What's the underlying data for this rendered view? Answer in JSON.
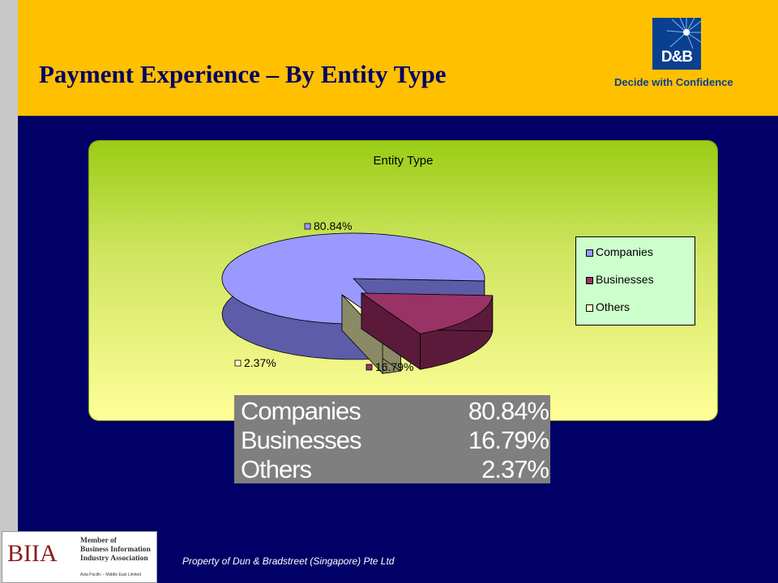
{
  "slide": {
    "title": "Payment Experience – By Entity Type",
    "logo_text": "D&B",
    "tagline": "Decide with Confidence",
    "footer": "Property of Dun & Bradstreet (Singapore) Pte Ltd",
    "biia": {
      "mark": "BIIA",
      "lines": [
        "Member of",
        "Business Information",
        "Industry Association"
      ],
      "sub": "Asia Pacific – Middle East Limited"
    }
  },
  "chart_data": {
    "type": "pie",
    "title": "Entity Type",
    "categories": [
      "Companies",
      "Businesses",
      "Others"
    ],
    "values": [
      80.84,
      16.79,
      2.37
    ],
    "data_labels": [
      "80.84%",
      "16.79%",
      "2.37%"
    ],
    "colors": [
      "#9999ff",
      "#993366",
      "#ffffcc"
    ],
    "legend": "right"
  },
  "table": {
    "rows": [
      {
        "name": "Companies",
        "value": "80.84%"
      },
      {
        "name": "Businesses",
        "value": "16.79%"
      },
      {
        "name": "Others",
        "value": "2.37%"
      }
    ]
  }
}
